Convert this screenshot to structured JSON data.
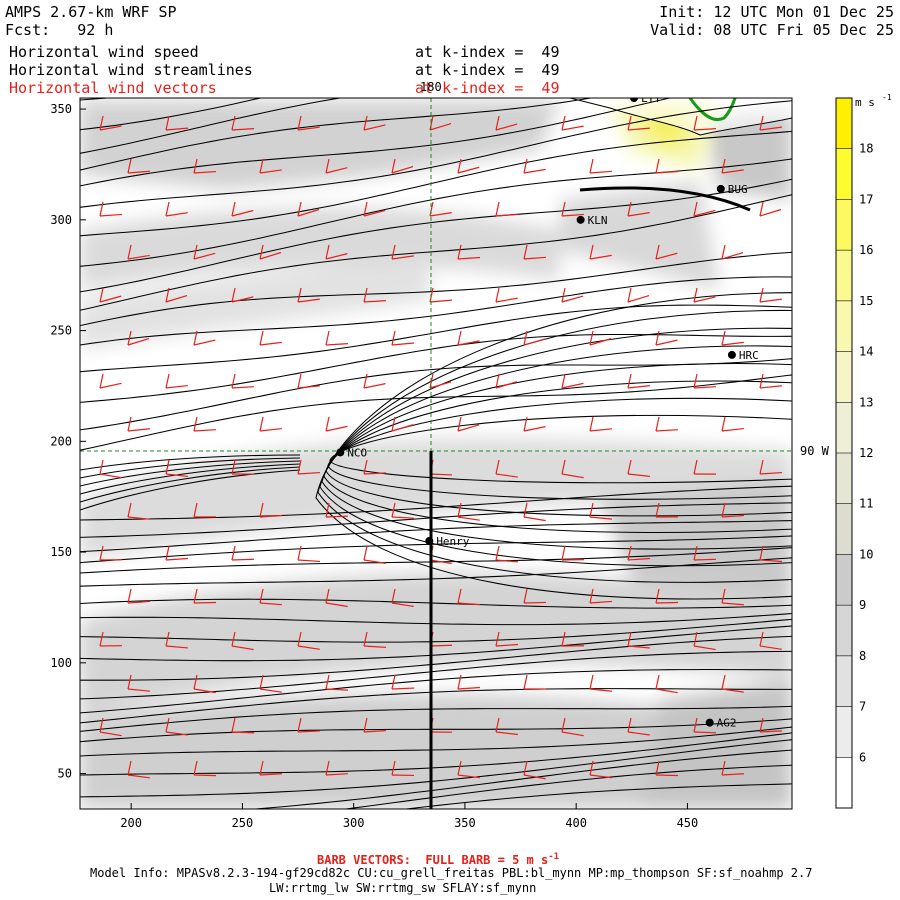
{
  "header": {
    "model_title": "AMPS 2.67-km WRF SP",
    "forecast": "Fcst:   92 h",
    "init": "Init: 12 UTC Mon 01 Dec 25",
    "valid": "Valid: 08 UTC Fri 05 Dec 25"
  },
  "fields": [
    {
      "label": "Horizontal wind speed",
      "level": "at k-index =  49",
      "color": "#000000"
    },
    {
      "label": "Horizontal wind streamlines",
      "level": "at k-index =  49",
      "color": "#000000"
    },
    {
      "label": "Horizontal wind vectors",
      "level": "at k-index =  49",
      "color": "#e8201a"
    }
  ],
  "axes": {
    "x_ticks": [
      200,
      250,
      300,
      350,
      400,
      450
    ],
    "y_ticks": [
      50,
      100,
      150,
      200,
      250,
      300,
      350
    ],
    "x_range": [
      177,
      497
    ],
    "y_range": [
      34,
      355
    ]
  },
  "grid_lines": {
    "meridian_label": "180",
    "parallel_label": "90 W"
  },
  "stations": [
    {
      "name": "KLN",
      "x": 402,
      "y": 300
    },
    {
      "name": "BUG",
      "x": 465,
      "y": 314
    },
    {
      "name": "HRC",
      "x": 470,
      "y": 239
    },
    {
      "name": "NCO",
      "x": 294,
      "y": 195
    },
    {
      "name": "Henry",
      "x": 334,
      "y": 155
    },
    {
      "name": "AG2",
      "x": 460,
      "y": 73
    },
    {
      "name": "LYT",
      "x": 426,
      "y": 355
    }
  ],
  "colorbar": {
    "unit": "m s",
    "unit_exp": "-1",
    "levels": [
      6,
      7,
      8,
      9,
      10,
      11,
      12,
      13,
      14,
      15,
      16,
      17,
      18
    ],
    "colors": [
      "#ffffff",
      "#ececec",
      "#e1e1e1",
      "#d6d6d6",
      "#cbcbcb",
      "#dcdcd0",
      "#e6e6d5",
      "#efefd8",
      "#f5f5c8",
      "#f8f8b0",
      "#fafa90",
      "#fbfb60",
      "#fcfc30",
      "#fff000"
    ]
  },
  "footer": {
    "barb_note": "BARB VECTORS:  FULL BARB = 5 m s",
    "barb_exp": "-1",
    "model_info_1": "Model Info: MPASv8.2.3-194-gf29cd82c CU:cu_grell_freitas PBL:bl_mynn MP:mp_thompson SF:sf_noahmp 2.7",
    "model_info_2": "LW:rrtmg_lw SW:rrtmg_sw SFLAY:sf_mynn"
  }
}
